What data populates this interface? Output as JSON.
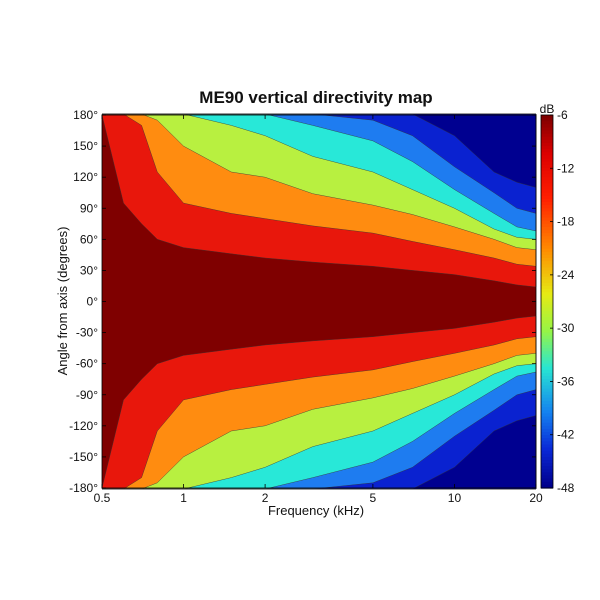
{
  "chart_data": {
    "type": "heatmap",
    "title": "ME90 vertical directivity map",
    "xlabel": "Frequency (kHz)",
    "ylabel": "Angle from axis (degrees)",
    "x_scale": "log",
    "xlim": [
      0.5,
      20
    ],
    "ylim": [
      -180,
      180
    ],
    "x_ticks": [
      {
        "value": 0.5,
        "label": "0.5"
      },
      {
        "value": 1,
        "label": "1"
      },
      {
        "value": 2,
        "label": "2"
      },
      {
        "value": 5,
        "label": "5"
      },
      {
        "value": 10,
        "label": "10"
      },
      {
        "value": 20,
        "label": "20"
      }
    ],
    "y_ticks": [
      {
        "value": 180,
        "label": "180°"
      },
      {
        "value": 150,
        "label": "150°"
      },
      {
        "value": 120,
        "label": "120°"
      },
      {
        "value": 90,
        "label": "90°"
      },
      {
        "value": 60,
        "label": "60°"
      },
      {
        "value": 30,
        "label": "30°"
      },
      {
        "value": 0,
        "label": "0°"
      },
      {
        "value": -30,
        "label": "-30°"
      },
      {
        "value": -60,
        "label": "-60°"
      },
      {
        "value": -90,
        "label": "-90°"
      },
      {
        "value": -120,
        "label": "-120°"
      },
      {
        "value": -150,
        "label": "-150°"
      },
      {
        "value": -180,
        "label": "-180°"
      }
    ],
    "colorbar": {
      "unit": "dB",
      "min": -48,
      "max": -6,
      "ticks": [
        {
          "value": -6,
          "label": "-6"
        },
        {
          "value": -12,
          "label": "-12"
        },
        {
          "value": -18,
          "label": "-18"
        },
        {
          "value": -24,
          "label": "-24"
        },
        {
          "value": -30,
          "label": "-30"
        },
        {
          "value": -36,
          "label": "-36"
        },
        {
          "value": -42,
          "label": "-42"
        },
        {
          "value": -48,
          "label": "-48"
        }
      ]
    },
    "contour_levels_db": [
      -6,
      -12,
      -18,
      -24,
      -30,
      -36,
      -42
    ],
    "level_colors": [
      "#7f0000",
      "#e8170c",
      "#ff8c10",
      "#b8f040",
      "#28e8d8",
      "#1e7cf0",
      "#0a22d0",
      "#000090"
    ],
    "contour_boundaries": {
      "frequency_khz": [
        0.5,
        0.6,
        0.7,
        0.8,
        1,
        1.5,
        2,
        3,
        5,
        7,
        10,
        14,
        17,
        20
      ],
      "angle_deg_at_-6dB": [
        180,
        95,
        75,
        60,
        52,
        46,
        42,
        38,
        34,
        30,
        26,
        20,
        16,
        14
      ],
      "angle_deg_at_-12dB": [
        181,
        181,
        170,
        125,
        95,
        85,
        80,
        73,
        66,
        58,
        50,
        42,
        36,
        34
      ],
      "angle_deg_at_-18dB": [
        181,
        181,
        181,
        175,
        150,
        125,
        120,
        104,
        93,
        84,
        72,
        60,
        52,
        50
      ],
      "angle_deg_at_-24dB": [
        181,
        181,
        181,
        181,
        181,
        170,
        160,
        140,
        125,
        108,
        90,
        70,
        62,
        60
      ],
      "angle_deg_at_-30dB": [
        181,
        181,
        181,
        181,
        181,
        181,
        181,
        170,
        155,
        135,
        108,
        85,
        72,
        68
      ],
      "angle_deg_at_-36dB": [
        181,
        181,
        181,
        181,
        181,
        181,
        181,
        181,
        175,
        160,
        130,
        105,
        90,
        85
      ],
      "angle_deg_at_-42dB": [
        181,
        181,
        181,
        181,
        181,
        181,
        181,
        181,
        181,
        181,
        160,
        125,
        115,
        110
      ]
    },
    "grid": false,
    "colorbar_position": "right"
  }
}
